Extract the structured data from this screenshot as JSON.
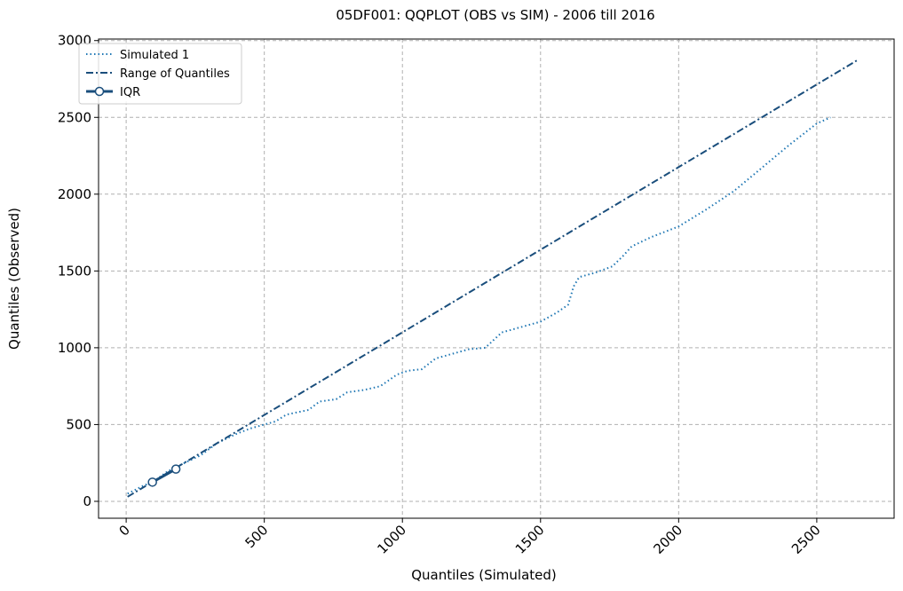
{
  "chart_data": {
    "type": "line",
    "title": "05DF001: QQPLOT (OBS vs SIM) - 2006 till 2016",
    "xlabel": "Quantiles (Simulated)",
    "ylabel": "Quantiles (Observed)",
    "xlim": [
      -100,
      2780
    ],
    "ylim": [
      -110,
      3010
    ],
    "xticks": [
      0,
      500,
      1000,
      1500,
      2000,
      2500
    ],
    "xtick_labels": [
      "0",
      "500",
      "1000",
      "1500",
      "2000",
      "2500"
    ],
    "yticks": [
      0,
      500,
      1000,
      1500,
      2000,
      2500,
      3000
    ],
    "ytick_labels": [
      "0",
      "500",
      "1000",
      "1500",
      "2000",
      "2500",
      "3000"
    ],
    "grid": true,
    "legend_position": "top-left",
    "colors": {
      "simulated": "#1f77b4",
      "range": "#1a4e7c",
      "iqr": "#1a4e7c"
    },
    "series": [
      {
        "name": "Simulated 1",
        "style": "dotted",
        "x": [
          5,
          60,
          100,
          150,
          200,
          270,
          330,
          400,
          450,
          500,
          540,
          580,
          620,
          660,
          700,
          760,
          800,
          860,
          920,
          980,
          1020,
          1070,
          1120,
          1180,
          1240,
          1300,
          1330,
          1360,
          1420,
          1500,
          1560,
          1600,
          1620,
          1640,
          1700,
          1760,
          1800,
          1830,
          1900,
          2000,
          2100,
          2200,
          2300,
          2400,
          2500,
          2550
        ],
        "y": [
          50,
          100,
          130,
          195,
          240,
          300,
          380,
          440,
          475,
          500,
          520,
          565,
          580,
          595,
          650,
          665,
          710,
          725,
          750,
          825,
          850,
          860,
          930,
          960,
          990,
          1000,
          1050,
          1100,
          1130,
          1170,
          1230,
          1280,
          1400,
          1460,
          1490,
          1530,
          1600,
          1660,
          1720,
          1790,
          1900,
          2020,
          2170,
          2320,
          2460,
          2500
        ]
      },
      {
        "name": "Range of Quantiles",
        "style": "dashdot",
        "x": [
          5,
          2645
        ],
        "y": [
          30,
          2870
        ]
      },
      {
        "name": "IQR",
        "style": "solid-markers",
        "x": [
          95,
          180
        ],
        "y": [
          125,
          210
        ]
      }
    ]
  }
}
